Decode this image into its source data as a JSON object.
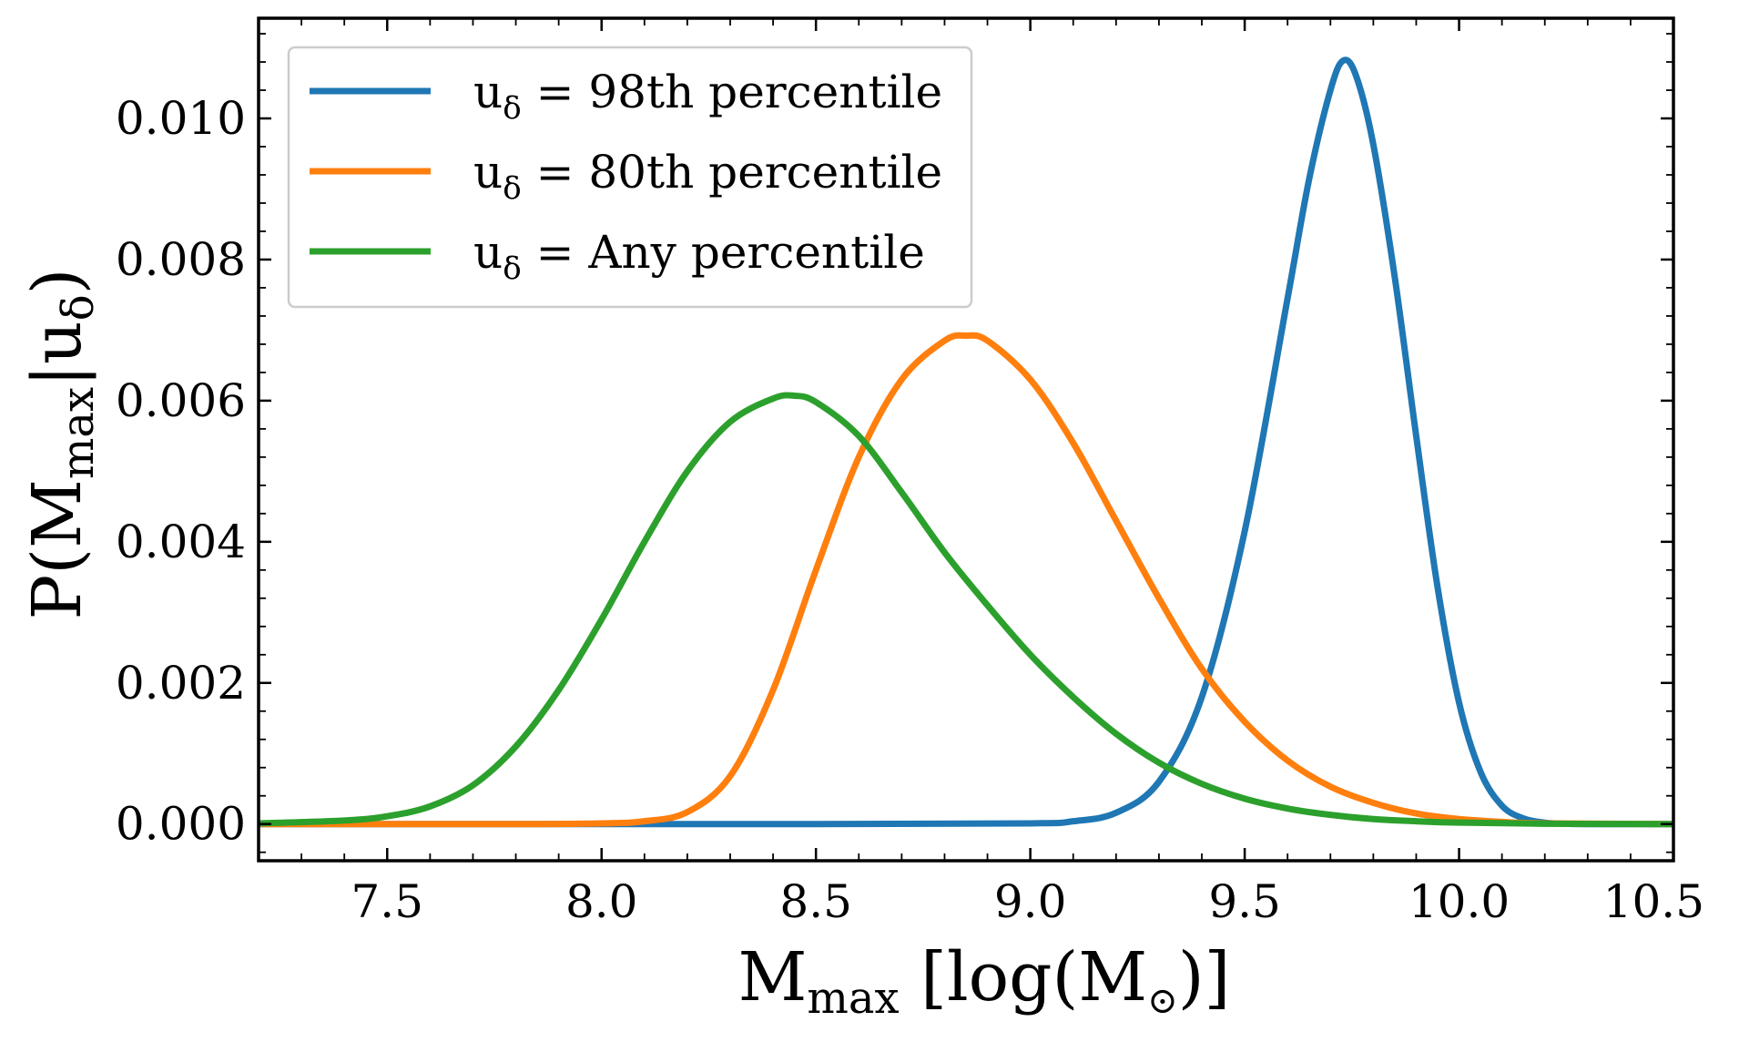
{
  "chart_data": {
    "type": "line",
    "xlabel": "M",
    "xlabel_sub": "max",
    "xlabel_suffix": " [log(M",
    "xlabel_sun_sub": "⊙",
    "xlabel_close": ")]",
    "ylabel": "P(M",
    "ylabel_sub": "max",
    "ylabel_mid": "|u",
    "ylabel_delta": "δ",
    "ylabel_close": ")",
    "xlim": [
      7.2,
      10.5
    ],
    "ylim": [
      -0.00052,
      0.01142
    ],
    "x_ticks": [
      {
        "value": 7.5,
        "label": "7.5"
      },
      {
        "value": 8.0,
        "label": "8.0"
      },
      {
        "value": 8.5,
        "label": "8.5"
      },
      {
        "value": 9.0,
        "label": "9.0"
      },
      {
        "value": 9.5,
        "label": "9.5"
      },
      {
        "value": 10.0,
        "label": "10.0"
      },
      {
        "value": 10.5,
        "label": "10.5"
      }
    ],
    "y_ticks": [
      {
        "value": 0.0,
        "label": "0.000"
      },
      {
        "value": 0.002,
        "label": "0.002"
      },
      {
        "value": 0.004,
        "label": "0.004"
      },
      {
        "value": 0.006,
        "label": "0.006"
      },
      {
        "value": 0.008,
        "label": "0.008"
      },
      {
        "value": 0.01,
        "label": "0.010"
      }
    ],
    "grid": false,
    "legend_position": "top-left",
    "series": [
      {
        "name": "u_δ = 98th percentile",
        "legend_prefix": "u",
        "legend_sub": "δ",
        "legend_rest": " = 98th percentile",
        "color": "#1f77b4",
        "x": [
          7.2,
          8.5,
          9.0,
          9.1,
          9.2,
          9.3,
          9.4,
          9.5,
          9.6,
          9.65,
          9.7,
          9.73,
          9.76,
          9.8,
          9.85,
          9.9,
          9.95,
          10.0,
          10.05,
          10.1,
          10.15,
          10.2,
          10.25,
          10.3,
          10.5
        ],
        "y": [
          0.0,
          0.0,
          1e-05,
          4e-05,
          0.00016,
          0.0006,
          0.0018,
          0.00415,
          0.00745,
          0.00913,
          0.0104,
          0.01082,
          0.0106,
          0.00963,
          0.00775,
          0.0055,
          0.00335,
          0.00172,
          0.00074,
          0.00026,
          8e-05,
          2e-05,
          4e-06,
          0.0,
          0.0
        ]
      },
      {
        "name": "u_δ = 80th percentile",
        "legend_prefix": "u",
        "legend_sub": "δ",
        "legend_rest": " = 80th percentile",
        "color": "#ff7f0e",
        "x": [
          7.2,
          7.8,
          8.0,
          8.1,
          8.2,
          8.3,
          8.4,
          8.5,
          8.6,
          8.7,
          8.8,
          8.85,
          8.9,
          9.0,
          9.1,
          9.2,
          9.3,
          9.4,
          9.5,
          9.6,
          9.7,
          9.8,
          9.9,
          10.0,
          10.1,
          10.2,
          10.5
        ],
        "y": [
          0.0,
          0.0,
          1e-05,
          4e-05,
          0.00017,
          0.00068,
          0.0019,
          0.0036,
          0.0052,
          0.0063,
          0.00685,
          0.00692,
          0.00685,
          0.0063,
          0.0054,
          0.0043,
          0.0032,
          0.0022,
          0.00145,
          0.0009,
          0.00053,
          0.0003,
          0.00015,
          7e-05,
          3e-05,
          1e-05,
          0.0
        ]
      },
      {
        "name": "u_δ = Any percentile",
        "legend_prefix": "u",
        "legend_sub": "δ",
        "legend_rest": " = Any percentile",
        "color": "#2ca02c",
        "x": [
          7.2,
          7.4,
          7.5,
          7.6,
          7.7,
          7.8,
          7.9,
          8.0,
          8.1,
          8.2,
          8.3,
          8.4,
          8.45,
          8.5,
          8.6,
          8.7,
          8.8,
          8.9,
          9.0,
          9.1,
          9.2,
          9.3,
          9.4,
          9.5,
          9.6,
          9.7,
          9.8,
          9.9,
          10.0,
          10.2,
          10.5
        ],
        "y": [
          1e-05,
          5e-05,
          0.00011,
          0.00025,
          0.00055,
          0.0011,
          0.0019,
          0.0029,
          0.004,
          0.005,
          0.0057,
          0.00603,
          0.00607,
          0.00598,
          0.0055,
          0.0047,
          0.00385,
          0.0031,
          0.0024,
          0.0018,
          0.00128,
          0.00087,
          0.00057,
          0.00036,
          0.00022,
          0.00013,
          7e-05,
          4e-05,
          2e-05,
          5e-06,
          0.0
        ]
      }
    ]
  }
}
